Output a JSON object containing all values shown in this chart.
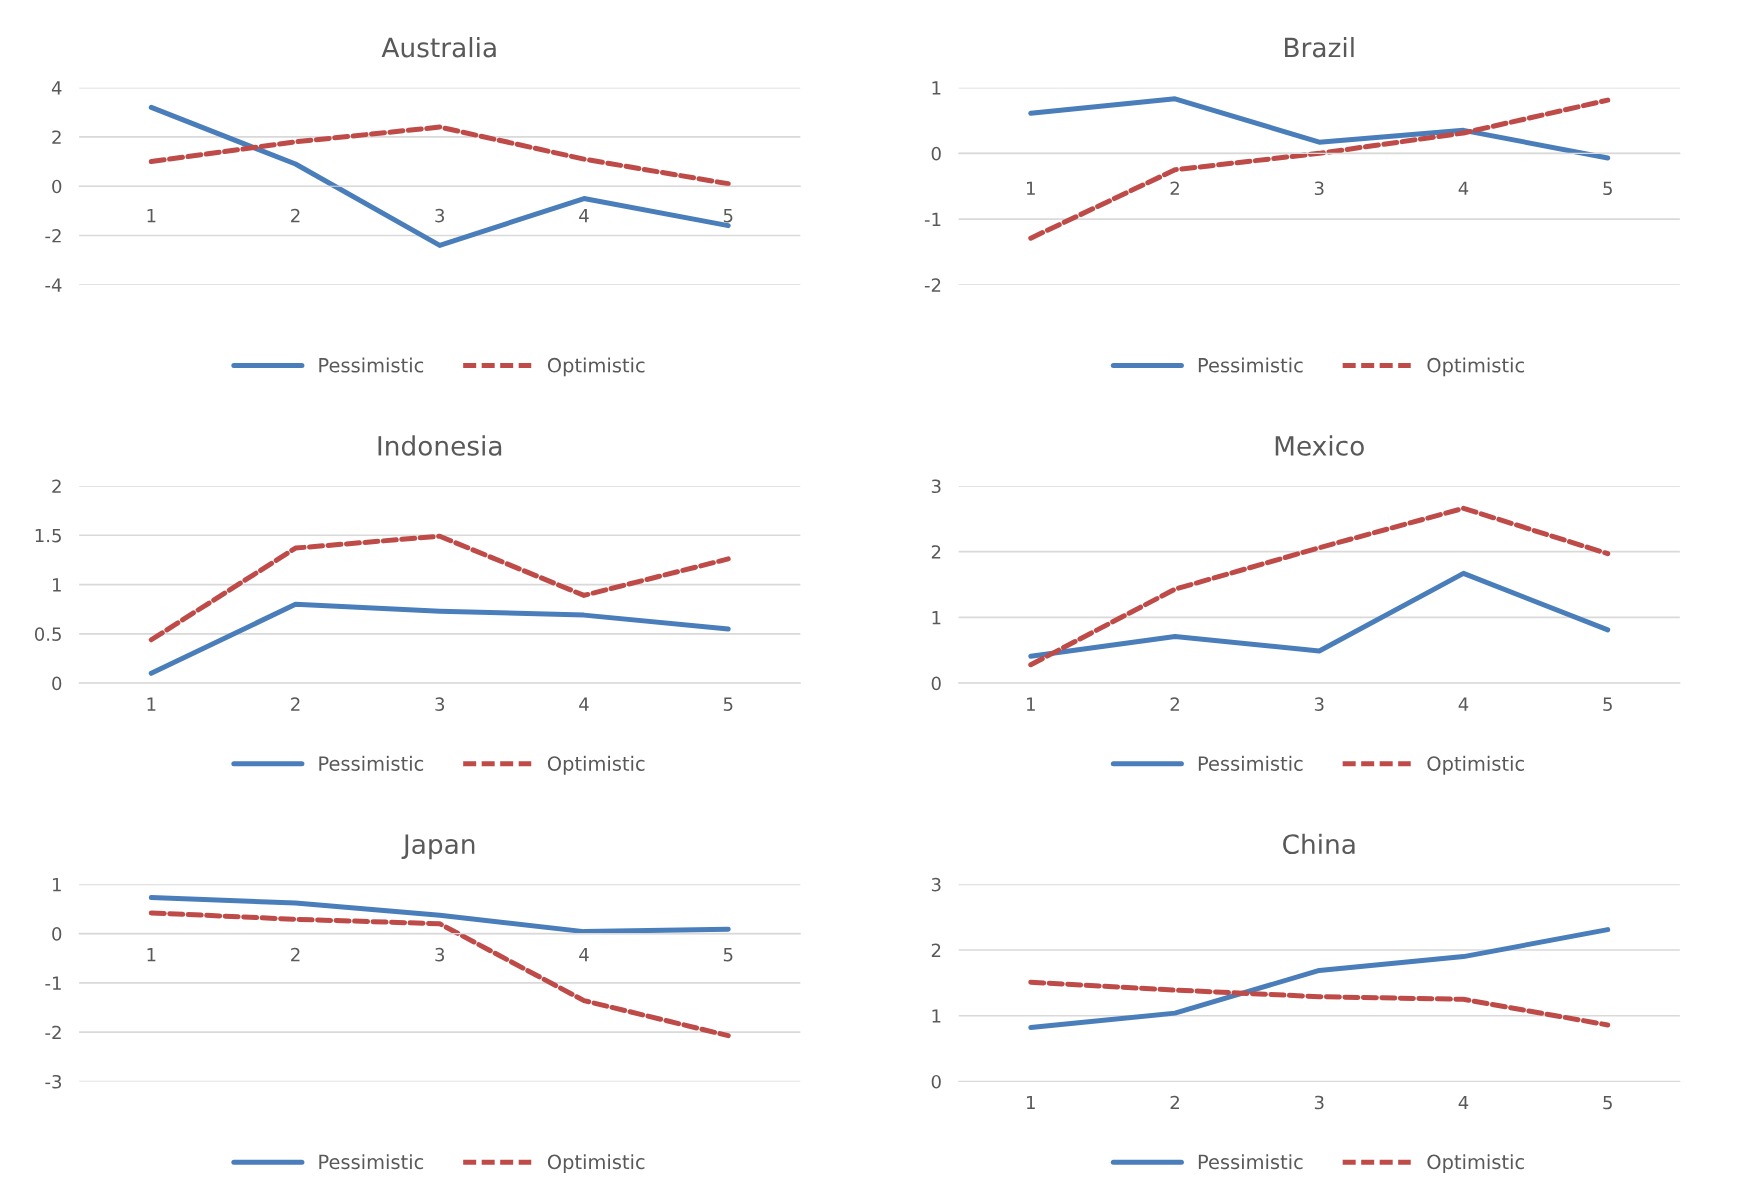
{
  "chart_data": [
    {
      "type": "line",
      "title": "Australia",
      "categories": [
        "1",
        "2",
        "3",
        "4",
        "5"
      ],
      "ylim": [
        -4,
        4
      ],
      "yticks": [
        -4,
        -2,
        0,
        2,
        4
      ],
      "grid": "y",
      "legend": "bottom",
      "series": [
        {
          "name": "Pessimistic",
          "color": "#4a7ebb",
          "line_style": "solid",
          "values": [
            3.2,
            0.9,
            -2.4,
            -0.5,
            -1.6
          ]
        },
        {
          "name": "Optimistic",
          "color": "#be4b48",
          "line_style": "dashed",
          "values": [
            1.0,
            1.8,
            2.4,
            1.1,
            0.1
          ]
        }
      ]
    },
    {
      "type": "line",
      "title": "Brazil",
      "categories": [
        "1",
        "2",
        "3",
        "4",
        "5"
      ],
      "ylim": [
        -2,
        1
      ],
      "yticks": [
        -2,
        -1,
        0,
        1
      ],
      "grid": "y",
      "legend": "bottom",
      "series": [
        {
          "name": "Pessimistic",
          "color": "#4a7ebb",
          "line_style": "solid",
          "values": [
            0.61,
            0.83,
            0.17,
            0.35,
            -0.07
          ]
        },
        {
          "name": "Optimistic",
          "color": "#be4b48",
          "line_style": "dashed",
          "values": [
            -1.29,
            -0.25,
            0.0,
            0.31,
            0.81
          ]
        }
      ]
    },
    {
      "type": "line",
      "title": "Indonesia",
      "categories": [
        "1",
        "2",
        "3",
        "4",
        "5"
      ],
      "ylim": [
        0,
        2
      ],
      "yticks": [
        0,
        0.5,
        1,
        1.5,
        2
      ],
      "grid": "y",
      "legend": "bottom",
      "series": [
        {
          "name": "Pessimistic",
          "color": "#4a7ebb",
          "line_style": "solid",
          "values": [
            0.1,
            0.8,
            0.73,
            0.69,
            0.55
          ]
        },
        {
          "name": "Optimistic",
          "color": "#be4b48",
          "line_style": "dashed",
          "values": [
            0.44,
            1.37,
            1.49,
            0.89,
            1.26
          ]
        }
      ]
    },
    {
      "type": "line",
      "title": "Mexico",
      "categories": [
        "1",
        "2",
        "3",
        "4",
        "5"
      ],
      "ylim": [
        0,
        3
      ],
      "yticks": [
        0,
        1,
        2,
        3
      ],
      "grid": "y",
      "legend": "bottom",
      "series": [
        {
          "name": "Pessimistic",
          "color": "#4a7ebb",
          "line_style": "solid",
          "values": [
            0.41,
            0.71,
            0.49,
            1.67,
            0.81
          ]
        },
        {
          "name": "Optimistic",
          "color": "#be4b48",
          "line_style": "dashed",
          "values": [
            0.28,
            1.43,
            2.06,
            2.66,
            1.97
          ]
        }
      ]
    },
    {
      "type": "line",
      "title": "Japan",
      "categories": [
        "1",
        "2",
        "3",
        "4",
        "5"
      ],
      "ylim": [
        -3,
        1
      ],
      "yticks": [
        -3,
        -2,
        -1,
        0,
        1
      ],
      "grid": "y",
      "legend": "bottom",
      "series": [
        {
          "name": "Pessimistic",
          "color": "#4a7ebb",
          "line_style": "solid",
          "values": [
            0.73,
            0.62,
            0.37,
            0.04,
            0.09
          ]
        },
        {
          "name": "Optimistic",
          "color": "#be4b48",
          "line_style": "dashed",
          "values": [
            0.42,
            0.29,
            0.2,
            -1.36,
            -2.07
          ]
        }
      ]
    },
    {
      "type": "line",
      "title": "China",
      "categories": [
        "1",
        "2",
        "3",
        "4",
        "5"
      ],
      "ylim": [
        0,
        3
      ],
      "yticks": [
        0,
        1,
        2,
        3
      ],
      "grid": "y",
      "legend": "bottom",
      "series": [
        {
          "name": "Pessimistic",
          "color": "#4a7ebb",
          "line_style": "solid",
          "values": [
            0.82,
            1.04,
            1.69,
            1.9,
            2.31
          ]
        },
        {
          "name": "Optimistic",
          "color": "#be4b48",
          "line_style": "dashed",
          "values": [
            1.51,
            1.39,
            1.29,
            1.25,
            0.86
          ]
        }
      ]
    }
  ]
}
